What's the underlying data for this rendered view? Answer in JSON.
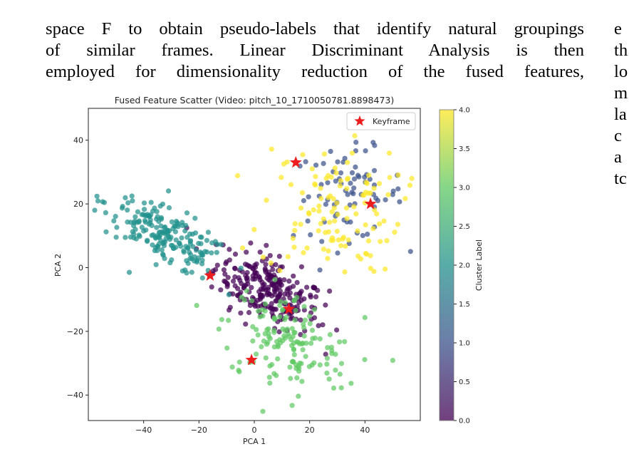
{
  "paragraph": {
    "lines": [
      "space F to obtain pseudo-labels that identify natural groupings",
      "of similar frames. Linear Discriminant Analysis is then",
      "employed for dimensionality reduction of the fused features,"
    ]
  },
  "right_column": {
    "lines": [
      "e",
      "th",
      "lo",
      "m",
      "la",
      "c",
      "a",
      "tc"
    ]
  },
  "chart_data": {
    "type": "scatter",
    "title": "Fused Feature Scatter (Video: pitch_10_1710050781.8898473)",
    "xlabel": "PCA 1",
    "ylabel": "PCA 2",
    "xlim": [
      -60,
      60
    ],
    "ylim": [
      -48,
      50
    ],
    "xticks": [
      -40,
      -20,
      0,
      20,
      40
    ],
    "yticks": [
      -40,
      -20,
      0,
      20,
      40
    ],
    "colorbar": {
      "label": "Cluster Label",
      "range": [
        0.0,
        4.0
      ],
      "ticks": [
        "0.0",
        "0.5",
        "1.0",
        "1.5",
        "2.0",
        "2.5",
        "3.0",
        "3.5",
        "4.0"
      ],
      "colormap": "viridis"
    },
    "legend": {
      "position": "top-right",
      "entries": [
        "Keyframe"
      ]
    },
    "clusters": [
      {
        "label": 0,
        "color": "#440154",
        "center": [
          5,
          -7
        ],
        "spread": [
          10,
          5
        ],
        "count": 260,
        "orientation": -0.42
      },
      {
        "label": 1,
        "color": "#3b528b",
        "center": [
          34,
          23
        ],
        "spread": [
          10,
          7
        ],
        "count": 75,
        "orientation": 0
      },
      {
        "label": 2,
        "color": "#21918c",
        "center": [
          -32,
          10
        ],
        "spread": [
          12,
          4
        ],
        "count": 200,
        "orientation": -0.45
      },
      {
        "label": 3,
        "color": "#5ec962",
        "center": [
          12,
          -24
        ],
        "spread": [
          12,
          8
        ],
        "count": 150,
        "orientation": -0.3
      },
      {
        "label": 4,
        "color": "#fde725",
        "center": [
          28,
          18
        ],
        "spread": [
          13,
          10
        ],
        "count": 120,
        "orientation": 0
      }
    ],
    "keyframes": [
      {
        "x": 15,
        "y": 33
      },
      {
        "x": 42,
        "y": 20
      },
      {
        "x": -16,
        "y": -2.5
      },
      {
        "x": 12.5,
        "y": -13
      },
      {
        "x": -1,
        "y": -29
      }
    ],
    "keyframe_color": "#ee1c1c"
  }
}
